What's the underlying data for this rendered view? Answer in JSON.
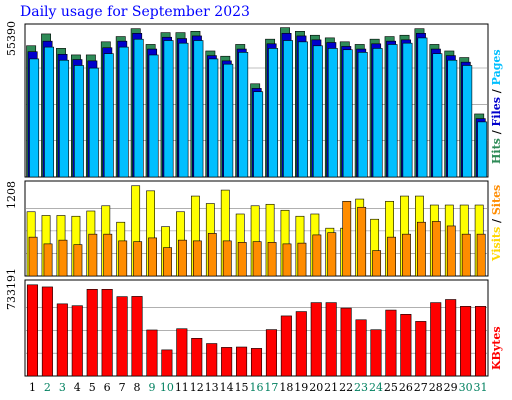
{
  "title": "Daily usage for September 2023",
  "chart_data": [
    {
      "type": "bar",
      "panel": "top",
      "ymax_label": "55390",
      "ylim": [
        0,
        55390
      ],
      "series": [
        {
          "name": "Hits",
          "color": "#2e8b57",
          "values": [
            48500,
            53000,
            47500,
            45000,
            45000,
            50000,
            52000,
            55000,
            49000,
            53500,
            53500,
            54000,
            46500,
            44500,
            49000,
            34000,
            51000,
            55390,
            54000,
            52500,
            51500,
            50000,
            49000,
            51000,
            52000,
            52500,
            55000,
            49000,
            46500,
            44000,
            22500
          ]
        },
        {
          "name": "Files",
          "color": "#0000cc",
          "values": [
            47000,
            51000,
            46000,
            44000,
            43500,
            48500,
            51000,
            54000,
            48000,
            52500,
            52000,
            53000,
            45500,
            43500,
            48000,
            33000,
            50000,
            54000,
            53000,
            51500,
            50500,
            49000,
            48000,
            50000,
            51000,
            51500,
            54000,
            48000,
            45500,
            43000,
            21500
          ]
        },
        {
          "name": "Pages",
          "color": "#00bfff",
          "values": [
            45000,
            49500,
            44500,
            42500,
            41500,
            47000,
            49500,
            52500,
            46500,
            52000,
            51000,
            52000,
            45000,
            43000,
            47500,
            32500,
            49000,
            52000,
            51500,
            50000,
            49000,
            48500,
            47500,
            49000,
            50500,
            51000,
            53000,
            47000,
            44500,
            42500,
            21000
          ]
        }
      ],
      "side_labels": [
        {
          "text": "Hits",
          "color": "#2e8b57"
        },
        {
          "text": " / ",
          "color": "#000000"
        },
        {
          "text": "Files",
          "color": "#0000cc"
        },
        {
          "text": " / ",
          "color": "#000000"
        },
        {
          "text": "Pages",
          "color": "#00bfff"
        }
      ]
    },
    {
      "type": "bar",
      "panel": "middle",
      "ymax_label": "1208",
      "ylim": [
        0,
        1208
      ],
      "series": [
        {
          "name": "Visits",
          "color": "#ffff00",
          "values": [
            860,
            810,
            810,
            800,
            870,
            940,
            720,
            1208,
            1140,
            660,
            860,
            1070,
            970,
            1150,
            830,
            940,
            960,
            880,
            800,
            830,
            640,
            640,
            1030,
            760,
            1000,
            1070,
            1070,
            950,
            950,
            950,
            950
          ]
        },
        {
          "name": "Sites",
          "color": "#ff8c00",
          "values": [
            520,
            430,
            480,
            420,
            560,
            560,
            470,
            460,
            510,
            380,
            480,
            470,
            570,
            470,
            450,
            460,
            450,
            430,
            440,
            550,
            580,
            1000,
            920,
            340,
            520,
            560,
            720,
            730,
            670,
            560,
            560
          ]
        }
      ],
      "side_labels": [
        {
          "text": "Visits",
          "color": "#ffd700"
        },
        {
          "text": " / ",
          "color": "#000000"
        },
        {
          "text": "Sites",
          "color": "#ff8c00"
        }
      ]
    },
    {
      "type": "bar",
      "panel": "bottom",
      "ymax_label": "733191",
      "ylim": [
        0,
        733191
      ],
      "series": [
        {
          "name": "KBytes",
          "color": "#ff0000",
          "values": [
            733191,
            716000,
            580000,
            565000,
            697000,
            697000,
            638000,
            640000,
            370000,
            210000,
            380000,
            303000,
            261000,
            230000,
            233000,
            222000,
            373000,
            483000,
            518000,
            590000,
            590000,
            546000,
            452000,
            372000,
            530000,
            496000,
            439000,
            590000,
            615000,
            560000,
            560000
          ]
        }
      ],
      "side_labels": [
        {
          "text": "KBytes",
          "color": "#ff0000"
        }
      ]
    }
  ],
  "days": [
    "1",
    "2",
    "3",
    "4",
    "5",
    "6",
    "7",
    "8",
    "9",
    "10",
    "11",
    "12",
    "13",
    "14",
    "15",
    "16",
    "17",
    "18",
    "19",
    "20",
    "21",
    "22",
    "23",
    "24",
    "25",
    "26",
    "27",
    "28",
    "29",
    "30",
    "31"
  ],
  "weekend_days": [
    "2",
    "3",
    "9",
    "10",
    "16",
    "17",
    "23",
    "24",
    "30",
    "31"
  ],
  "colors": {
    "weekday": "#000000",
    "weekend": "#00805f",
    "title": "#0000ff",
    "frame": "#000000",
    "grid": "#808080"
  }
}
